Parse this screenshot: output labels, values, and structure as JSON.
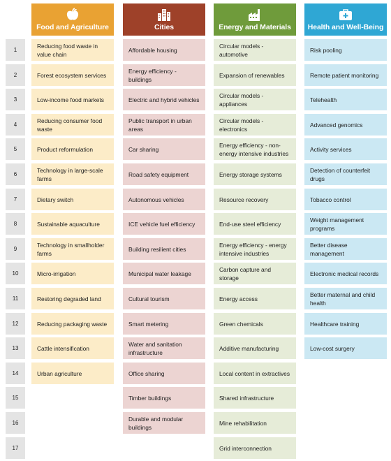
{
  "headers": {
    "food": {
      "title": "Food and Agriculture",
      "icon": "apple-icon"
    },
    "cities": {
      "title": "Cities",
      "icon": "city-buildings-icon"
    },
    "energy": {
      "title": "Energy and Materials",
      "icon": "factory-icon"
    },
    "health": {
      "title": "Health and Well-Being",
      "icon": "medical-kit-icon"
    }
  },
  "colors": {
    "food": "#e9a233",
    "cities": "#9e4129",
    "energy": "#6f9b3b",
    "health": "#2fa7d4",
    "food_light": "#fcecc8",
    "cities_light": "#ecd4d2",
    "energy_light": "#e6ecd8",
    "health_light": "#cbe8f3",
    "number_bg": "#e4e4e4"
  },
  "rows": [
    {
      "n": "1",
      "food": "Reducing food waste in value chain",
      "cities": "Affordable housing",
      "energy": "Circular models - automotive",
      "health": "Risk pooling"
    },
    {
      "n": "2",
      "food": "Forest ecosystem services",
      "cities": "Energy efficiency - buildings",
      "energy": "Expansion of renewables",
      "health": "Remote patient monitoring"
    },
    {
      "n": "3",
      "food": "Low-income food markets",
      "cities": "Electric and hybrid vehicles",
      "energy": "Circular models - appliances",
      "health": "Telehealth"
    },
    {
      "n": "4",
      "food": "Reducing consumer food waste",
      "cities": "Public transport in urban areas",
      "energy": "Circular models - electronics",
      "health": "Advanced genomics"
    },
    {
      "n": "5",
      "food": "Product reformulation",
      "cities": "Car sharing",
      "energy": "Energy efficiency - non-energy intensive industries",
      "health": "Activity services"
    },
    {
      "n": "6",
      "food": "Technology in large-scale farms",
      "cities": "Road safety equipment",
      "energy": "Energy storage systems",
      "health": "Detection of counterfeit drugs"
    },
    {
      "n": "7",
      "food": "Dietary switch",
      "cities": "Autonomous vehicles",
      "energy": "Resource recovery",
      "health": "Tobacco control"
    },
    {
      "n": "8",
      "food": "Sustainable aquaculture",
      "cities": "ICE vehicle fuel efficiency",
      "energy": "End-use steel efficiency",
      "health": "Weight management programs"
    },
    {
      "n": "9",
      "food": "Technology in smallholder farms",
      "cities": "Building resilient cities",
      "energy": "Energy efficiency - energy intensive industries",
      "health": "Better disease management"
    },
    {
      "n": "10",
      "food": "Micro-irrigation",
      "cities": "Municipal water leakage",
      "energy": "Carbon capture and storage",
      "health": "Electronic medical records"
    },
    {
      "n": "11",
      "food": "Restoring degraded land",
      "cities": "Cultural tourism",
      "energy": "Energy access",
      "health": "Better maternal and child health"
    },
    {
      "n": "12",
      "food": "Reducing packaging waste",
      "cities": "Smart metering",
      "energy": "Green chemicals",
      "health": "Healthcare training"
    },
    {
      "n": "13",
      "food": "Cattle intensification",
      "cities": "Water and sanitation infrastructure",
      "energy": "Additive manufacturing",
      "health": "Low-cost surgery"
    },
    {
      "n": "14",
      "food": "Urban agriculture",
      "cities": "Office sharing",
      "energy": "Local content in extractives",
      "health": ""
    },
    {
      "n": "15",
      "food": "",
      "cities": "Timber buildings",
      "energy": "Shared infrastructure",
      "health": ""
    },
    {
      "n": "16",
      "food": "",
      "cities": "Durable and modular buildings",
      "energy": "Mine rehabilitation",
      "health": ""
    },
    {
      "n": "17",
      "food": "",
      "cities": "",
      "energy": "Grid interconnection",
      "health": ""
    }
  ]
}
